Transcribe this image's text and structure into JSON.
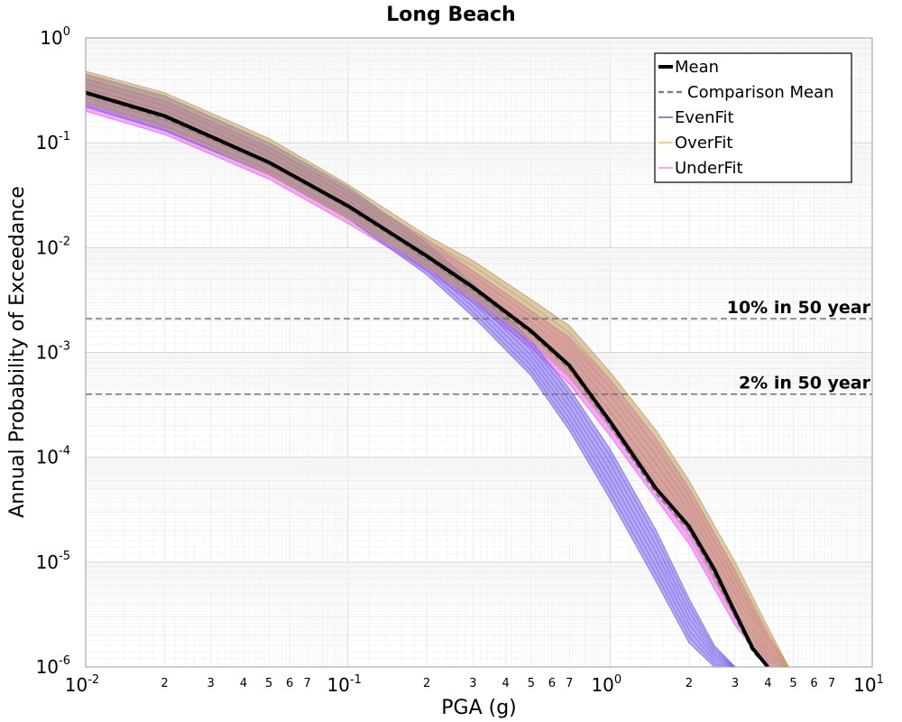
{
  "chart_data": {
    "type": "line",
    "title": "Long Beach",
    "xlabel": "PGA (g)",
    "ylabel": "Annual Probability of Exceedance",
    "xscale": "log",
    "yscale": "log",
    "xlim": [
      0.01,
      10
    ],
    "ylim": [
      1e-06,
      1
    ],
    "grid": true,
    "legend_position": "top-right",
    "x_major_ticks": [
      {
        "value": 0.01,
        "base": "10",
        "exp": "-2"
      },
      {
        "value": 0.1,
        "base": "10",
        "exp": "-1"
      },
      {
        "value": 1,
        "base": "10",
        "exp": "0"
      },
      {
        "value": 10,
        "base": "10",
        "exp": "1"
      }
    ],
    "x_minor_labels": [
      "2",
      "3",
      "4",
      "5",
      "6",
      "7"
    ],
    "y_major_ticks": [
      {
        "value": 1,
        "base": "10",
        "exp": "0"
      },
      {
        "value": 0.1,
        "base": "10",
        "exp": "-1"
      },
      {
        "value": 0.01,
        "base": "10",
        "exp": "-2"
      },
      {
        "value": 0.001,
        "base": "10",
        "exp": "-3"
      },
      {
        "value": 0.0001,
        "base": "10",
        "exp": "-4"
      },
      {
        "value": 1e-05,
        "base": "10",
        "exp": "-5"
      },
      {
        "value": 1e-06,
        "base": "10",
        "exp": "-6"
      }
    ],
    "legend": [
      {
        "label": "Mean",
        "color": "#000000",
        "style": "solid-thick"
      },
      {
        "label": "Comparison Mean",
        "color": "#808080",
        "style": "dashed"
      },
      {
        "label": "EvenFit",
        "color": "#1f3fd8",
        "style": "solid-thin"
      },
      {
        "label": "OverFit",
        "color": "#f0b000",
        "style": "solid-thin"
      },
      {
        "label": "UnderFit",
        "color": "#ee77ee",
        "style": "solid-thin"
      }
    ],
    "reference_lines": [
      {
        "label": "10% in 50 year",
        "y": 0.0021
      },
      {
        "label": "2% in 50 year",
        "y": 0.0004
      }
    ],
    "series": [
      {
        "name": "Mean",
        "color": "#000000",
        "x": [
          0.01,
          0.02,
          0.05,
          0.1,
          0.2,
          0.3,
          0.5,
          0.7,
          1.0,
          1.5,
          2.0,
          2.5,
          3.0,
          3.5,
          4.0
        ],
        "y": [
          0.3,
          0.18,
          0.065,
          0.025,
          0.0083,
          0.0042,
          0.0016,
          0.00075,
          0.00022,
          5e-05,
          2.2e-05,
          8.5e-06,
          3.3e-06,
          1.5e-06,
          1e-06
        ]
      },
      {
        "name": "Comparison Mean",
        "color": "#808080",
        "x": [
          0.01,
          0.02,
          0.05,
          0.1,
          0.2,
          0.3,
          0.5,
          0.7,
          1.0,
          1.5,
          2.0,
          2.5,
          3.0,
          3.5,
          4.0
        ],
        "y": [
          0.29,
          0.17,
          0.063,
          0.024,
          0.0078,
          0.0039,
          0.0015,
          0.0007,
          0.0002,
          4.5e-05,
          2e-05,
          7.5e-06,
          3e-06,
          1.4e-06,
          1e-06
        ]
      }
    ],
    "bands": [
      {
        "name": "UnderFit",
        "color": "#ee66ee",
        "x": [
          0.01,
          0.02,
          0.05,
          0.1,
          0.2,
          0.3,
          0.5,
          0.7,
          1.0,
          1.5,
          2.0,
          3.0,
          4.0,
          4.8
        ],
        "upper": [
          0.4,
          0.25,
          0.09,
          0.035,
          0.012,
          0.006,
          0.0025,
          0.0014,
          0.00055,
          0.00015,
          5e-05,
          8e-06,
          2e-06,
          1e-06
        ],
        "lower": [
          0.2,
          0.12,
          0.045,
          0.017,
          0.006,
          0.003,
          0.0011,
          0.0005,
          0.00016,
          4e-05,
          1.5e-05,
          2.5e-06,
          1e-06,
          1e-06
        ]
      },
      {
        "name": "EvenFit",
        "color": "#7b66ee",
        "x": [
          0.01,
          0.02,
          0.05,
          0.1,
          0.2,
          0.3,
          0.5,
          0.7,
          1.0,
          1.5,
          2.0,
          2.5,
          3.0
        ],
        "upper": [
          0.45,
          0.28,
          0.1,
          0.038,
          0.011,
          0.0045,
          0.0013,
          0.00045,
          0.00012,
          2e-05,
          4.5e-06,
          1.6e-06,
          1e-06
        ],
        "lower": [
          0.22,
          0.13,
          0.05,
          0.019,
          0.0055,
          0.0022,
          0.0006,
          0.00018,
          4e-05,
          6.5e-06,
          1.7e-06,
          1e-06,
          1e-06
        ]
      },
      {
        "name": "OverFit",
        "color": "#c0a060",
        "x": [
          0.01,
          0.02,
          0.05,
          0.1,
          0.2,
          0.3,
          0.5,
          0.7,
          1.0,
          1.5,
          2.0,
          3.0,
          4.0,
          4.8
        ],
        "upper": [
          0.48,
          0.3,
          0.11,
          0.04,
          0.013,
          0.0075,
          0.0032,
          0.0018,
          0.00065,
          0.00018,
          6e-05,
          1e-05,
          2.4e-06,
          1e-06
        ],
        "lower": [
          0.24,
          0.14,
          0.05,
          0.019,
          0.0065,
          0.0033,
          0.0013,
          0.0006,
          0.0002,
          5e-05,
          2e-05,
          3e-06,
          1e-06,
          1e-06
        ]
      }
    ]
  }
}
